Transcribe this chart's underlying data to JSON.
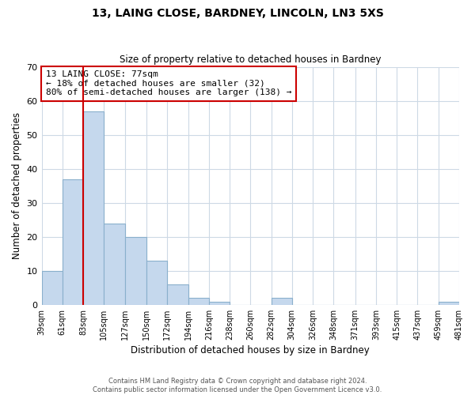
{
  "title1": "13, LAING CLOSE, BARDNEY, LINCOLN, LN3 5XS",
  "title2": "Size of property relative to detached houses in Bardney",
  "xlabel": "Distribution of detached houses by size in Bardney",
  "ylabel": "Number of detached properties",
  "bins": [
    39,
    61,
    83,
    105,
    127,
    150,
    172,
    194,
    216,
    238,
    260,
    282,
    304,
    326,
    348,
    371,
    393,
    415,
    437,
    459,
    481
  ],
  "bin_labels": [
    "39sqm",
    "61sqm",
    "83sqm",
    "105sqm",
    "127sqm",
    "150sqm",
    "172sqm",
    "194sqm",
    "216sqm",
    "238sqm",
    "260sqm",
    "282sqm",
    "304sqm",
    "326sqm",
    "348sqm",
    "371sqm",
    "393sqm",
    "415sqm",
    "437sqm",
    "459sqm",
    "481sqm"
  ],
  "counts": [
    10,
    37,
    57,
    24,
    20,
    13,
    6,
    2,
    1,
    0,
    0,
    2,
    0,
    0,
    0,
    0,
    0,
    0,
    0,
    1
  ],
  "bar_color": "#c5d8ed",
  "bar_edge_color": "#8ab0cc",
  "property_line_color": "#cc0000",
  "annotation_line0": "13 LAING CLOSE: 77sqm",
  "annotation_line1": "← 18% of detached houses are smaller (32)",
  "annotation_line2": "80% of semi-detached houses are larger (138) →",
  "annotation_box_color": "#ffffff",
  "annotation_box_edge": "#cc0000",
  "ylim": [
    0,
    70
  ],
  "yticks": [
    0,
    10,
    20,
    30,
    40,
    50,
    60,
    70
  ],
  "footer1": "Contains HM Land Registry data © Crown copyright and database right 2024.",
  "footer2": "Contains public sector information licensed under the Open Government Licence v3.0.",
  "background_color": "#ffffff",
  "grid_color": "#cdd9e5"
}
